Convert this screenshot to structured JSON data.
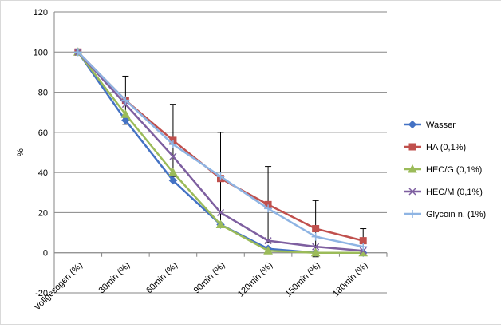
{
  "chart_data": {
    "type": "line",
    "title": "",
    "xlabel": "",
    "ylabel": "%",
    "ylim": [
      -20,
      120
    ],
    "yticks": [
      -20,
      0,
      20,
      40,
      60,
      80,
      100,
      120
    ],
    "grid": "horizontal",
    "legend_position": "right",
    "categories": [
      "Vollgesogen (%)",
      "30min (%)",
      "60min (%)",
      "90min (%)",
      "120min (%)",
      "150min (%)",
      "180min (%)"
    ],
    "series": [
      {
        "name": "Wasser",
        "color": "#4472c4",
        "marker": "diamond",
        "values": [
          100,
          66,
          36,
          14,
          2,
          0,
          0
        ]
      },
      {
        "name": "HA (0,1%)",
        "color": "#c0504d",
        "marker": "square",
        "values": [
          100,
          76,
          56,
          37,
          24,
          12,
          6
        ],
        "error": [
          0,
          12,
          18,
          23,
          19,
          14,
          6
        ]
      },
      {
        "name": "HEC/G (0,1%)",
        "color": "#9bbb59",
        "marker": "triangle",
        "values": [
          100,
          69,
          40,
          14,
          1,
          0,
          0
        ]
      },
      {
        "name": "HEC/M (0,1%)",
        "color": "#7e5fa0",
        "marker": "x",
        "values": [
          100,
          74,
          48,
          20,
          6,
          3,
          1
        ]
      },
      {
        "name": "Glycoin n. (1%)",
        "color": "#8eb4e3",
        "marker": "plus",
        "values": [
          100,
          76,
          54,
          38,
          22,
          8,
          3
        ]
      }
    ]
  }
}
